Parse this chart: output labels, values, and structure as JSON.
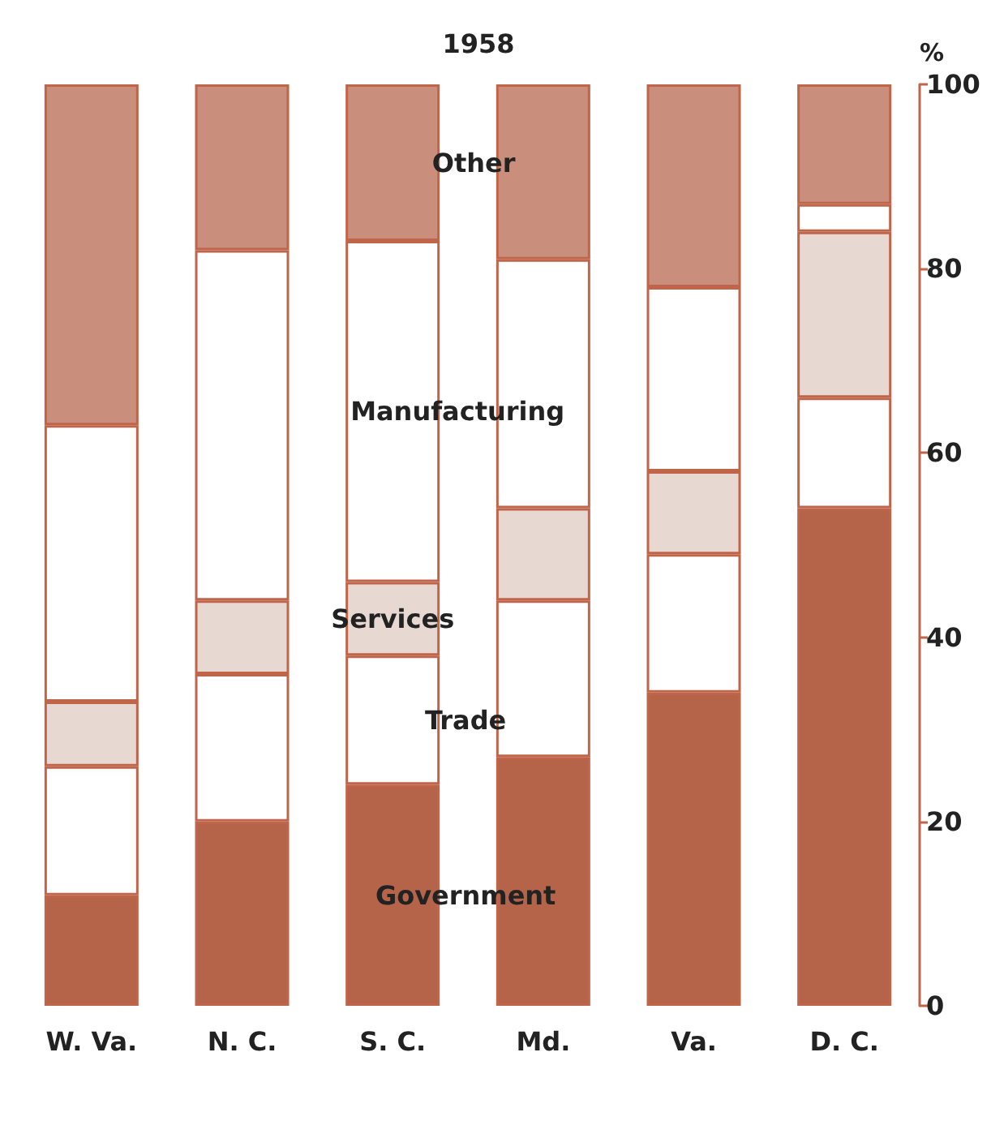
{
  "chart_data": {
    "type": "bar",
    "title": "1958",
    "ylabel": "%",
    "stacked": true,
    "categories": [
      "W. Va.",
      "N. C.",
      "S. C.",
      "Md.",
      "Va.",
      "D. C."
    ],
    "series": [
      {
        "name": "Government",
        "color": "#b5644a",
        "values": [
          12,
          20,
          24,
          27,
          34,
          54
        ]
      },
      {
        "name": "Trade",
        "color": "#ffffff",
        "values": [
          14,
          16,
          14,
          17,
          15,
          12
        ]
      },
      {
        "name": "Services",
        "color": "#e8d8d2",
        "values": [
          7,
          8,
          8,
          10,
          9,
          18
        ]
      },
      {
        "name": "Manufacturing",
        "color": "#ffffff",
        "values": [
          30,
          38,
          37,
          27,
          20,
          3
        ]
      },
      {
        "name": "Other",
        "color": "#c98f7c",
        "values": [
          37,
          18,
          17,
          19,
          22,
          13
        ]
      }
    ],
    "ylim": [
      0,
      100
    ],
    "yticks": [
      0,
      20,
      40,
      60,
      80,
      100
    ],
    "grid": false,
    "legend": false
  }
}
